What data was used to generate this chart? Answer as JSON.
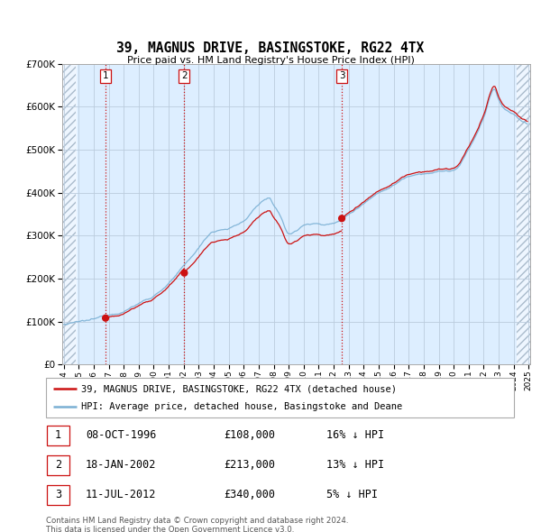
{
  "title": "39, MAGNUS DRIVE, BASINGSTOKE, RG22 4TX",
  "subtitle": "Price paid vs. HM Land Registry's House Price Index (HPI)",
  "sale_label_info": [
    {
      "num": "1",
      "date": "08-OCT-1996",
      "price": "£108,000",
      "hpi": "16% ↓ HPI"
    },
    {
      "num": "2",
      "date": "18-JAN-2002",
      "price": "£213,000",
      "hpi": "13% ↓ HPI"
    },
    {
      "num": "3",
      "date": "11-JUL-2012",
      "price": "£340,000",
      "hpi": "5% ↓ HPI"
    }
  ],
  "sale_times": [
    1996.79,
    2002.04,
    2012.54
  ],
  "sale_prices": [
    108000,
    213000,
    340000
  ],
  "sale_labels": [
    "1",
    "2",
    "3"
  ],
  "hpi_line_color": "#7ab0d4",
  "sale_line_color": "#cc1111",
  "sale_dot_color": "#cc1111",
  "vline_color": "#cc1111",
  "legend_label_sale": "39, MAGNUS DRIVE, BASINGSTOKE, RG22 4TX (detached house)",
  "legend_label_hpi": "HPI: Average price, detached house, Basingstoke and Deane",
  "footer1": "Contains HM Land Registry data © Crown copyright and database right 2024.",
  "footer2": "This data is licensed under the Open Government Licence v3.0.",
  "ylim": [
    0,
    700000
  ],
  "yticks": [
    0,
    100000,
    200000,
    300000,
    400000,
    500000,
    600000,
    700000
  ],
  "background_color": "#ffffff",
  "plot_bg_color": "#ddeeff",
  "grid_color": "#bbccdd"
}
